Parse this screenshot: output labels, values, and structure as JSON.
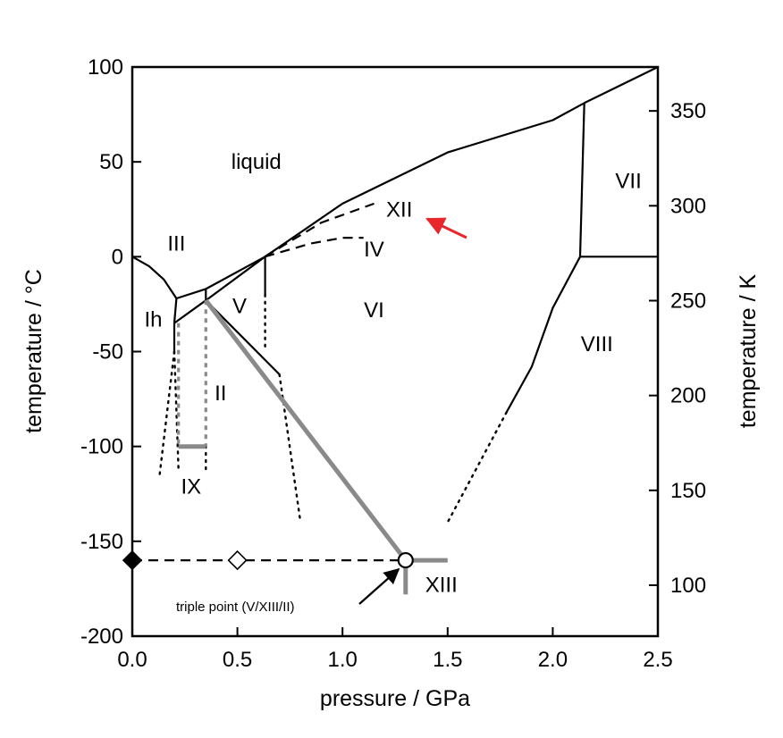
{
  "chart_data": {
    "type": "line",
    "title": "",
    "xlabel": "pressure / GPa",
    "ylabel": "temperature / °C",
    "y2label": "temperature / K",
    "xlim": [
      0.0,
      2.5
    ],
    "ylim": [
      -200,
      100
    ],
    "y2lim": [
      73.15,
      373.15
    ],
    "x_ticks": [
      "0.0",
      "0.5",
      "1.0",
      "1.5",
      "2.0",
      "2.5"
    ],
    "x_tick_values": [
      0.0,
      0.5,
      1.0,
      1.5,
      2.0,
      2.5
    ],
    "y_ticks": [
      "100",
      "50",
      "0",
      "-50",
      "-100",
      "-150",
      "-200"
    ],
    "y_tick_values": [
      100,
      50,
      0,
      -50,
      -100,
      -150,
      -200
    ],
    "y2_ticks": [
      "350",
      "300",
      "250",
      "200",
      "150",
      "100"
    ],
    "y2_tick_values": [
      350,
      300,
      250,
      200,
      150,
      100
    ],
    "grid": false,
    "regions": [
      {
        "label": "liquid",
        "x": 0.59,
        "y": 50
      },
      {
        "label": "XII",
        "x": 1.27,
        "y": 25
      },
      {
        "label": "IV",
        "x": 1.15,
        "y": 4
      },
      {
        "label": "III",
        "x": 0.21,
        "y": 7
      },
      {
        "label": "Ih",
        "x": 0.1,
        "y": -33
      },
      {
        "label": "V",
        "x": 0.51,
        "y": -26
      },
      {
        "label": "VI",
        "x": 1.15,
        "y": -28
      },
      {
        "label": "VII",
        "x": 2.36,
        "y": 40
      },
      {
        "label": "VIII",
        "x": 2.21,
        "y": -46
      },
      {
        "label": "II",
        "x": 0.42,
        "y": -72
      },
      {
        "label": "IX",
        "x": 0.28,
        "y": -121
      },
      {
        "label": "XIII",
        "x": 1.47,
        "y": -173
      }
    ],
    "annotations": [
      {
        "text": "triple point (V/XIII/II)",
        "x": 1.3,
        "y": -160
      }
    ],
    "series": [
      {
        "style": "solid-black",
        "points": [
          [
            0.0,
            0.0
          ],
          [
            0.08,
            -5
          ],
          [
            0.15,
            -12
          ],
          [
            0.21,
            -22
          ]
        ]
      },
      {
        "style": "solid-black",
        "points": [
          [
            0.21,
            -22
          ],
          [
            0.35,
            -17
          ]
        ]
      },
      {
        "style": "solid-black",
        "points": [
          [
            0.21,
            -22
          ],
          [
            0.2,
            -35
          ]
        ]
      },
      {
        "style": "solid-black",
        "points": [
          [
            0.2,
            -35
          ],
          [
            0.35,
            -23
          ]
        ]
      },
      {
        "style": "solid-black",
        "points": [
          [
            0.35,
            -17
          ],
          [
            0.35,
            -23
          ]
        ]
      },
      {
        "style": "solid-black",
        "points": [
          [
            0.35,
            -23
          ],
          [
            0.632,
            0
          ]
        ]
      },
      {
        "style": "solid-black",
        "points": [
          [
            0.632,
            0
          ],
          [
            0.632,
            -20
          ]
        ]
      },
      {
        "style": "solid-black",
        "points": [
          [
            0.35,
            -17
          ],
          [
            0.632,
            0
          ]
        ]
      },
      {
        "style": "solid-black",
        "points": [
          [
            0.2,
            -35
          ],
          [
            0.2,
            -50
          ]
        ]
      },
      {
        "style": "solid-black",
        "points": [
          [
            0.35,
            -23
          ],
          [
            0.7,
            -62
          ]
        ]
      },
      {
        "style": "solid-black",
        "points": [
          [
            0.632,
            0
          ],
          [
            1.0,
            28
          ],
          [
            1.5,
            55
          ],
          [
            2.0,
            72
          ],
          [
            2.15,
            81
          ],
          [
            2.5,
            100
          ]
        ]
      },
      {
        "style": "solid-black",
        "points": [
          [
            2.15,
            81
          ],
          [
            2.13,
            0
          ]
        ]
      },
      {
        "style": "solid-black",
        "points": [
          [
            2.13,
            0
          ],
          [
            2.5,
            0
          ]
        ]
      },
      {
        "style": "solid-black",
        "points": [
          [
            2.13,
            0
          ],
          [
            2.0,
            -27
          ],
          [
            1.9,
            -58
          ],
          [
            1.78,
            -82
          ]
        ]
      },
      {
        "style": "dashed-black",
        "points": [
          [
            0.63,
            0
          ],
          [
            0.9,
            18
          ],
          [
            1.15,
            28
          ]
        ]
      },
      {
        "style": "dashed-black",
        "points": [
          [
            0.63,
            0
          ],
          [
            0.85,
            7
          ],
          [
            1.0,
            10
          ],
          [
            1.1,
            10
          ]
        ]
      },
      {
        "style": "dashed-black",
        "points": [
          [
            0.0,
            -160
          ],
          [
            1.3,
            -160
          ]
        ]
      },
      {
        "style": "dotted-black",
        "points": [
          [
            0.2,
            -50
          ],
          [
            0.13,
            -115
          ]
        ]
      },
      {
        "style": "dotted-black",
        "points": [
          [
            0.632,
            -20
          ],
          [
            0.632,
            -48
          ]
        ]
      },
      {
        "style": "dotted-black",
        "points": [
          [
            0.7,
            -62
          ],
          [
            0.8,
            -140
          ]
        ]
      },
      {
        "style": "dotted-black",
        "points": [
          [
            1.78,
            -82
          ],
          [
            1.5,
            -140
          ]
        ]
      },
      {
        "style": "dotted-black",
        "points": [
          [
            0.2,
            -50
          ],
          [
            0.22,
            -112
          ]
        ]
      },
      {
        "style": "dotted-black",
        "points": [
          [
            0.35,
            -112
          ],
          [
            0.35,
            -100
          ]
        ]
      },
      {
        "style": "dotted-gray",
        "points": [
          [
            0.22,
            -35
          ],
          [
            0.22,
            -100
          ]
        ]
      },
      {
        "style": "dotted-gray",
        "points": [
          [
            0.35,
            -23
          ],
          [
            0.35,
            -100
          ]
        ]
      },
      {
        "style": "solid-gray",
        "points": [
          [
            0.22,
            -100
          ],
          [
            0.35,
            -100
          ]
        ]
      },
      {
        "style": "solid-gray",
        "points": [
          [
            0.35,
            -23
          ],
          [
            1.3,
            -160
          ]
        ]
      },
      {
        "style": "solid-gray",
        "points": [
          [
            1.3,
            -160
          ],
          [
            1.5,
            -160
          ]
        ]
      },
      {
        "style": "solid-gray",
        "points": [
          [
            1.3,
            -160
          ],
          [
            1.3,
            -178
          ]
        ]
      }
    ],
    "markers": [
      {
        "shape": "diamond-filled",
        "x": 0.0,
        "y": -160
      },
      {
        "shape": "diamond-open",
        "x": 0.5,
        "y": -160
      },
      {
        "shape": "circle-open",
        "x": 1.3,
        "y": -160
      }
    ],
    "colors": {
      "black": "#000000",
      "gray": "#8a8a8a",
      "highlight-arrow": "#e8262b"
    }
  }
}
